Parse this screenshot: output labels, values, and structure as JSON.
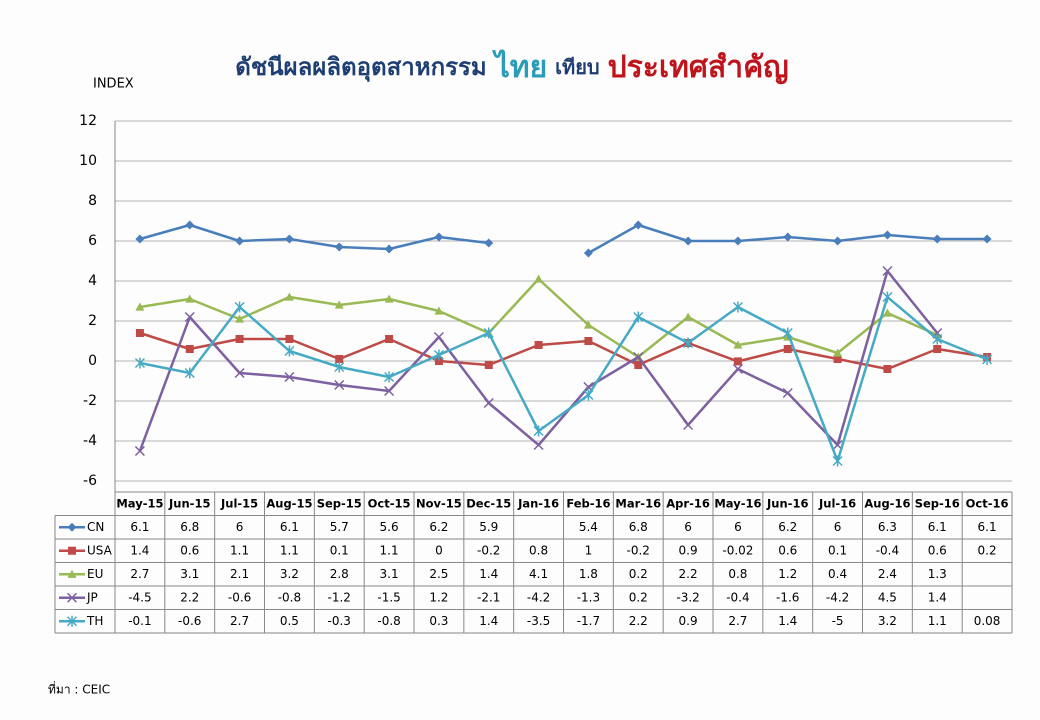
{
  "chart_data": {
    "type": "line",
    "title": [
      "ดัชนีผลผลิตอุตสาหกรรม",
      "ไทย",
      "เทียบ",
      "ประเทศสำคัญ"
    ],
    "title_colors": [
      "#1f3f73",
      "#2b9bb8",
      "#1f3f73",
      "#c0141c"
    ],
    "y_label": "INDEX",
    "source": "ที่มา : CEIC",
    "categories": [
      "May-15",
      "Jun-15",
      "Jul-15",
      "Aug-15",
      "Sep-15",
      "Oct-15",
      "Nov-15",
      "Dec-15",
      "Jan-16",
      "Feb-16",
      "Mar-16",
      "Apr-16",
      "May-16",
      "Jun-16",
      "Jul-16",
      "Aug-16",
      "Sep-16",
      "Oct-16"
    ],
    "series": [
      {
        "name": "CN",
        "color": "#4a7ebb",
        "marker": "diamond",
        "values": [
          6.1,
          6.8,
          6,
          6.1,
          5.7,
          5.6,
          6.2,
          5.9,
          null,
          5.4,
          6.8,
          6,
          6,
          6.2,
          6,
          6.3,
          6.1,
          6.1
        ]
      },
      {
        "name": "USA",
        "color": "#be4b48",
        "marker": "square",
        "values": [
          1.4,
          0.6,
          1.1,
          1.1,
          0.1,
          1.1,
          0,
          -0.2,
          0.8,
          1,
          -0.2,
          0.9,
          -0.02,
          0.6,
          0.1,
          -0.4,
          0.6,
          0.2
        ]
      },
      {
        "name": "EU",
        "color": "#98b954",
        "marker": "triangle",
        "values": [
          2.7,
          3.1,
          2.1,
          3.2,
          2.8,
          3.1,
          2.5,
          1.4,
          4.1,
          1.8,
          0.2,
          2.2,
          0.8,
          1.2,
          0.4,
          2.4,
          1.3,
          null
        ]
      },
      {
        "name": "JP",
        "color": "#7d60a0",
        "marker": "x",
        "values": [
          -4.5,
          2.2,
          -0.6,
          -0.8,
          -1.2,
          -1.5,
          1.2,
          -2.1,
          -4.2,
          -1.3,
          0.2,
          -3.2,
          -0.4,
          -1.6,
          -4.2,
          4.5,
          1.4,
          null
        ]
      },
      {
        "name": "TH",
        "color": "#46aac5",
        "marker": "star",
        "values": [
          -0.1,
          -0.6,
          2.7,
          0.5,
          -0.3,
          -0.8,
          0.3,
          1.4,
          -3.5,
          -1.7,
          2.2,
          0.9,
          2.7,
          1.4,
          -5,
          3.2,
          1.1,
          0.08
        ]
      }
    ],
    "ylim": [
      -6,
      12
    ],
    "yticks": [
      -6,
      -4,
      -2,
      0,
      2,
      4,
      6,
      8,
      10,
      12
    ],
    "grid": true
  }
}
